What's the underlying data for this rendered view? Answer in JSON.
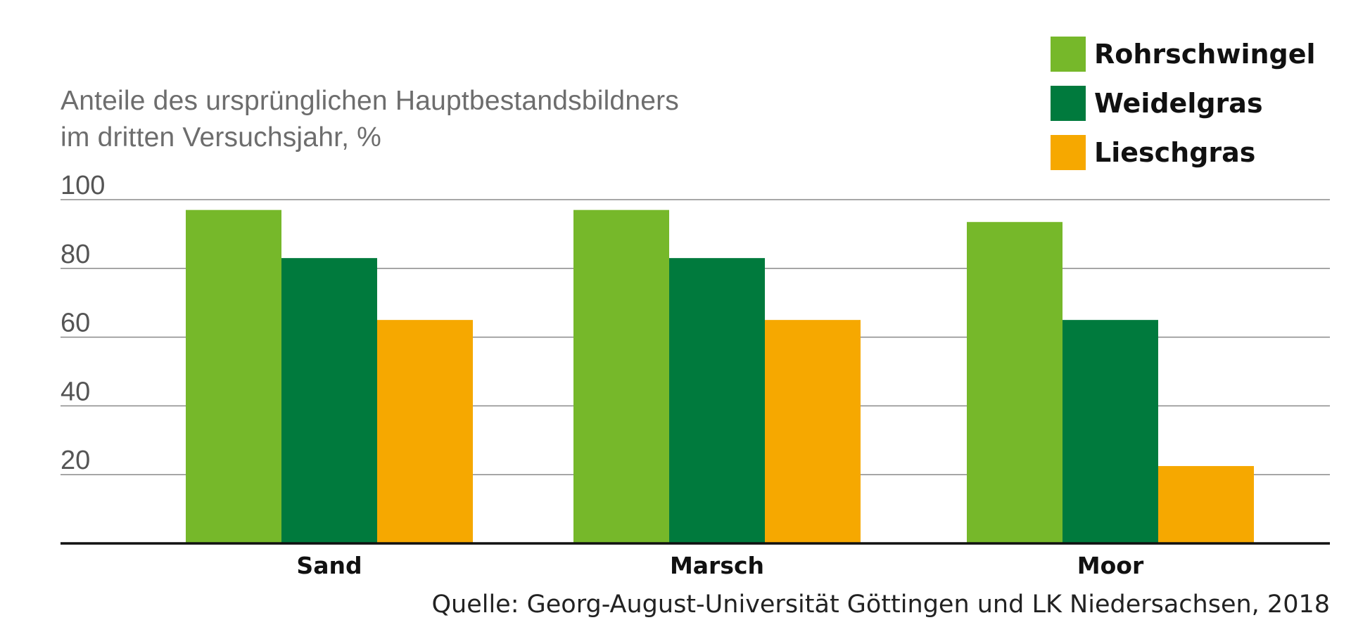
{
  "chart_data": {
    "type": "bar",
    "ylabel_lines": [
      "Anteile des ursprünglichen Hauptbestandsbildners",
      "im dritten Versuchsjahr, %"
    ],
    "categories": [
      "Sand",
      "Marsch",
      "Moor"
    ],
    "series": [
      {
        "name": "Rohrschwingel",
        "color": "#76b82a",
        "values": [
          97,
          97,
          93.5
        ]
      },
      {
        "name": "Weidelgras",
        "color": "#007a3d",
        "values": [
          83,
          83,
          65
        ]
      },
      {
        "name": "Lieschgras",
        "color": "#f6a800",
        "values": [
          65,
          65,
          22.5
        ]
      }
    ],
    "ylim": [
      0,
      100
    ],
    "yticks": [
      20,
      40,
      60,
      80,
      100
    ],
    "grid": true,
    "legend_position": "top-right",
    "source": "Quelle: Georg-August-Universität Göttingen und LK Niedersachsen, 2018"
  }
}
